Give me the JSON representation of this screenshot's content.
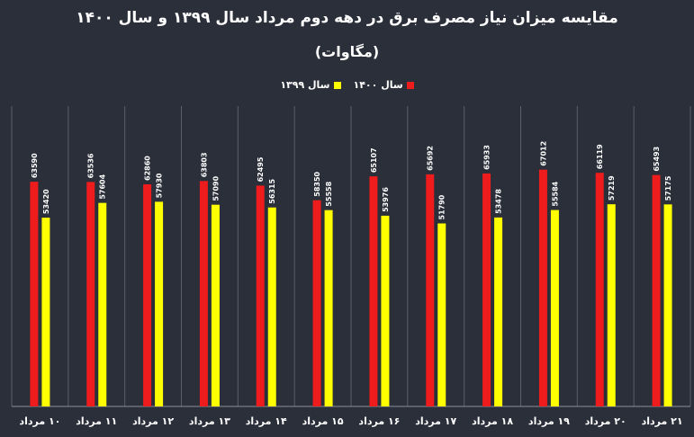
{
  "chart_data": {
    "type": "bar",
    "title": "مقایسه میزان نیاز مصرف برق در دهه دوم مرداد سال ۱۳۹۹ و سال ۱۴۰۰",
    "subtitle": "(مگاوات)",
    "categories": [
      "۱۰ مرداد",
      "۱۱ مرداد",
      "۱۲ مرداد",
      "۱۳ مرداد",
      "۱۴ مرداد",
      "۱۵ مرداد",
      "۱۶ مرداد",
      "۱۷ مرداد",
      "۱۸ مرداد",
      "۱۹ مرداد",
      "۲۰ مرداد",
      "۲۱ مرداد"
    ],
    "series": [
      {
        "name": "سال ۱۴۰۰",
        "color": "#ee1c1c",
        "values": [
          63590,
          63536,
          62860,
          63803,
          62495,
          58350,
          65107,
          65692,
          65933,
          67012,
          66119,
          65493
        ]
      },
      {
        "name": "سال ۱۳۹۹",
        "color": "#ffff00",
        "values": [
          53420,
          57604,
          57930,
          57090,
          56315,
          55558,
          53976,
          51790,
          53478,
          55584,
          57219,
          57175
        ]
      }
    ],
    "ylim": [
      0,
      85000
    ],
    "grid": false,
    "legend_position": "top-center"
  }
}
